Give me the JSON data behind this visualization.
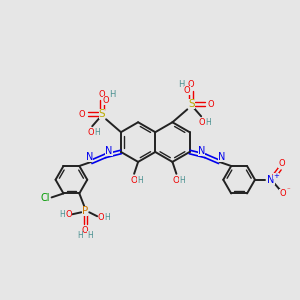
{
  "bg_color": "#e6e6e6",
  "bond_color": "#222222",
  "colors": {
    "N": "#0000ee",
    "O": "#ee0000",
    "S": "#bbaa00",
    "H": "#4a9090",
    "Cl": "#009900",
    "P": "#cc7700",
    "C": "#222222"
  }
}
